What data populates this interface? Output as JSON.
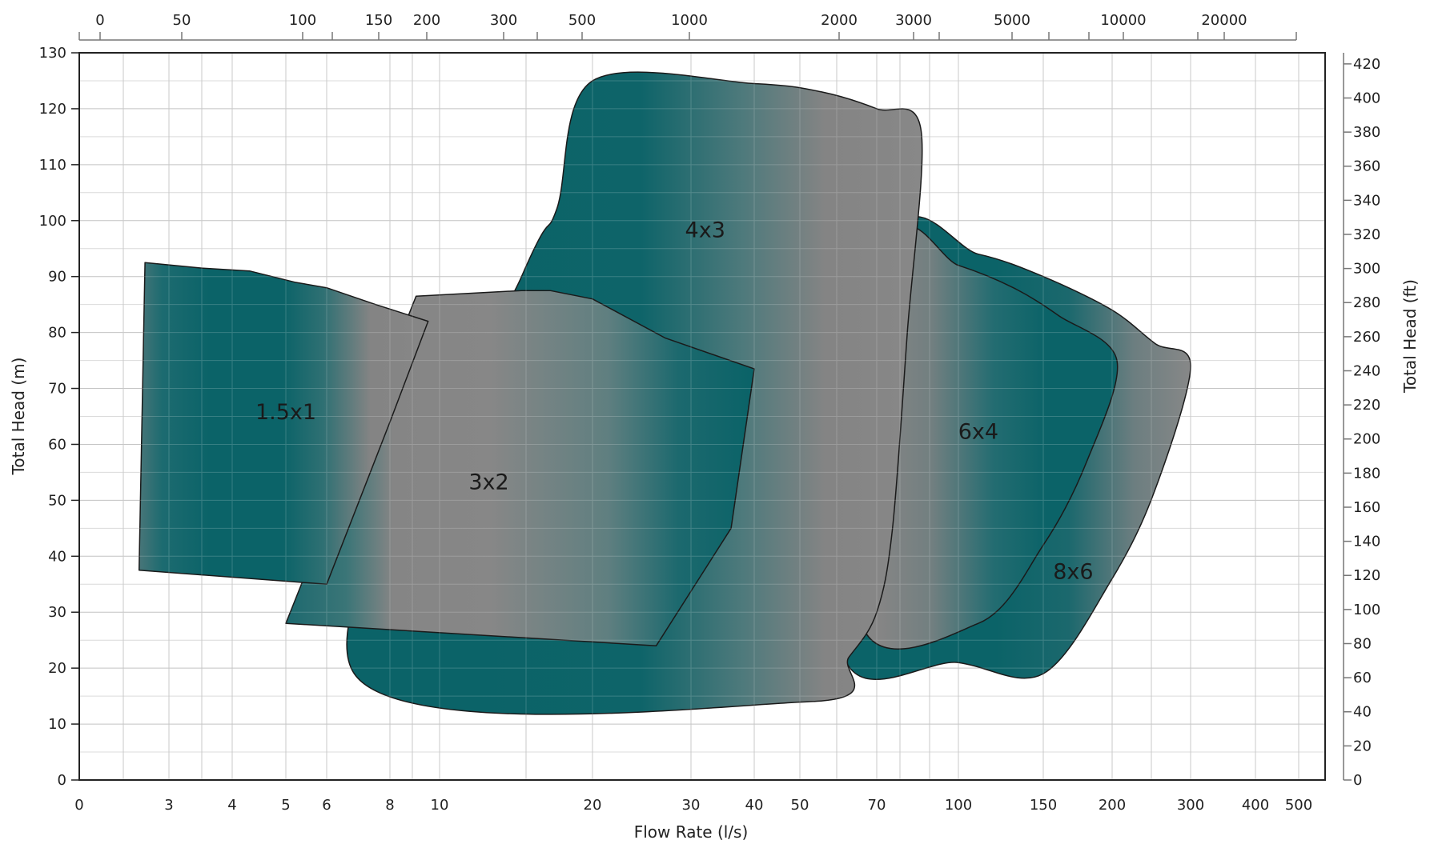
{
  "chart_data": {
    "type": "area",
    "title": "",
    "xlabel": "Flow Rate (l/s)",
    "ylabel": "Total Head (m)",
    "y2label": "Total Head (ft)",
    "x_scale": "log-like (nonlinear)",
    "x_tick_labels": [
      "0",
      "3",
      "4",
      "5",
      "6",
      "8",
      "10",
      "20",
      "30",
      "40",
      "50",
      "70",
      "100",
      "150",
      "200",
      "300",
      "400",
      "500"
    ],
    "top_tick_labels": [
      "0",
      "50",
      "100",
      "150",
      "200",
      "300",
      "500",
      "1000",
      "2000",
      "3000",
      "5000",
      "10000",
      "20000"
    ],
    "ylim": [
      0,
      130
    ],
    "y_tick_labels": [
      "0",
      "10",
      "20",
      "30",
      "40",
      "50",
      "60",
      "70",
      "80",
      "90",
      "100",
      "110",
      "120",
      "130"
    ],
    "y2_tick_labels": [
      "0",
      "20",
      "40",
      "60",
      "80",
      "100",
      "120",
      "140",
      "160",
      "180",
      "200",
      "220",
      "240",
      "260",
      "280",
      "300",
      "320",
      "340",
      "360",
      "380",
      "400",
      "420"
    ],
    "grid": true,
    "series": [
      {
        "name": "8x6",
        "boundary": [
          [
            75,
            96
          ],
          [
            110,
            94
          ],
          [
            150,
            90
          ],
          [
            200,
            84
          ],
          [
            250,
            78
          ],
          [
            300,
            74
          ],
          [
            250,
            52
          ],
          [
            200,
            36
          ],
          [
            150,
            19
          ],
          [
            100,
            21
          ],
          [
            60,
            24
          ]
        ]
      },
      {
        "name": "6x4",
        "boundary": [
          [
            75,
            95
          ],
          [
            100,
            92
          ],
          [
            130,
            88
          ],
          [
            160,
            83
          ],
          [
            205,
            75
          ],
          [
            180,
            57
          ],
          [
            150,
            42
          ],
          [
            110,
            28
          ],
          [
            65,
            29
          ]
        ]
      },
      {
        "name": "4x3",
        "boundary": [
          [
            20,
            125
          ],
          [
            40,
            124.5
          ],
          [
            55,
            123
          ],
          [
            70,
            120
          ],
          [
            85,
            116
          ],
          [
            80,
            80
          ],
          [
            75,
            45
          ],
          [
            70,
            30
          ],
          [
            62,
            22
          ],
          [
            52,
            14
          ],
          [
            6.8,
            19
          ],
          [
            14.5,
            90
          ],
          [
            17,
            102
          ]
        ]
      },
      {
        "name": "3x2",
        "boundary": [
          [
            9,
            86.5
          ],
          [
            14.5,
            87.5
          ],
          [
            16.5,
            87.5
          ],
          [
            20,
            86
          ],
          [
            27,
            79
          ],
          [
            40,
            73.5
          ],
          [
            36,
            45
          ],
          [
            26,
            24
          ],
          [
            5,
            28
          ]
        ]
      },
      {
        "name": "1.5x1",
        "boundary": [
          [
            2.2,
            92.5
          ],
          [
            3.5,
            91.5
          ],
          [
            4.3,
            91
          ],
          [
            5.2,
            89
          ],
          [
            6,
            88
          ],
          [
            7.5,
            85
          ],
          [
            9.5,
            82
          ],
          [
            8,
            64
          ],
          [
            6,
            35
          ],
          [
            2,
            37.5
          ]
        ]
      }
    ]
  }
}
